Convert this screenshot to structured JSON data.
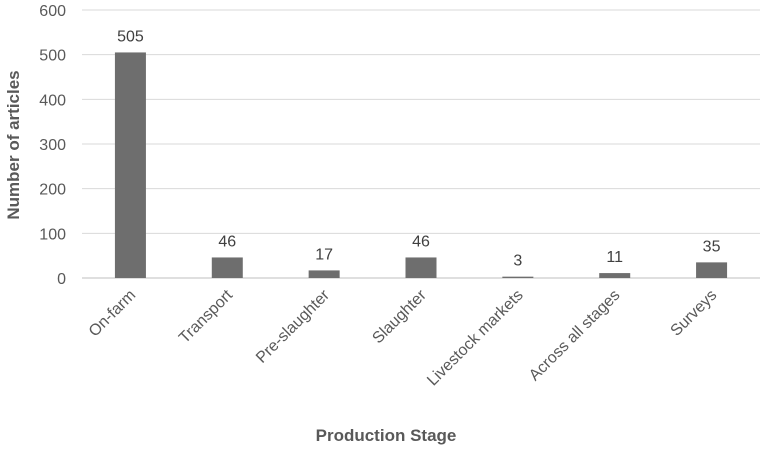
{
  "chart_data": {
    "type": "bar",
    "categories": [
      "On-farm",
      "Transport",
      "Pre-slaughter",
      "Slaughter",
      "Livestock markets",
      "Across all stages",
      "Surveys"
    ],
    "values": [
      505,
      46,
      17,
      46,
      3,
      11,
      35
    ],
    "data_labels": [
      "505",
      "46",
      "17",
      "46",
      "3",
      "11",
      "35"
    ],
    "title": "",
    "xlabel": "Production Stage",
    "ylabel": "Number of articles",
    "ylim": [
      0,
      600
    ],
    "yticks": [
      "0",
      "100",
      "200",
      "300",
      "400",
      "500",
      "600"
    ],
    "grid": true,
    "legend": "none",
    "colors": {
      "bar": "#6e6e6e",
      "grid": "#d9d9d9",
      "text": "#595959"
    }
  }
}
